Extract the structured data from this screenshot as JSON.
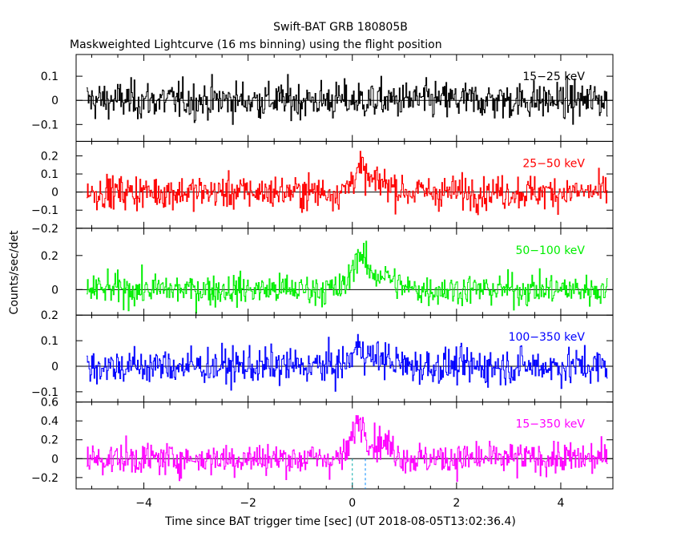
{
  "title": "Swift-BAT GRB 180805B",
  "subtitle": "Maskweighted Lightcurve (16 ms binning) using the flight position",
  "ylabel": "Counts/sec/det",
  "xlabel": "Time since BAT trigger time [sec] (UT 2018-08-05T13:02:36.4)",
  "chart_data": {
    "type": "line",
    "xlim": [
      -5.3,
      5.0
    ],
    "x_ticks": [
      -4,
      -2,
      0,
      2,
      4
    ],
    "x_tick_labels": [
      "−4",
      "−2",
      "0",
      "2",
      "4"
    ],
    "dashed_markers_x": [
      0,
      0.25
    ],
    "panels": [
      {
        "name": "15-25 keV",
        "label": "15−25 keV",
        "color": "#000000",
        "ylim": [
          -0.17,
          0.19
        ],
        "yticks": [
          -0.1,
          0,
          0.1
        ],
        "ytick_labels": [
          "−0.1",
          "0",
          "0.1"
        ],
        "noise": 0.055,
        "burst_amp": 0.0
      },
      {
        "name": "25-50 keV",
        "label": "25−50 keV",
        "color": "#ff0000",
        "ylim": [
          -0.2,
          0.28
        ],
        "yticks": [
          -0.2,
          -0.1,
          0,
          0.1,
          0.2
        ],
        "ytick_labels": [
          "−0.2",
          "−0.1",
          "0",
          "0.1",
          "0.2"
        ],
        "noise": 0.065,
        "burst_amp": 0.12
      },
      {
        "name": "50-100 keV",
        "label": "50−100 keV",
        "color": "#00ee00",
        "ylim": [
          -0.15,
          0.36
        ],
        "yticks": [
          0,
          0.2
        ],
        "ytick_labels": [
          "0",
          "0.2"
        ],
        "noise": 0.065,
        "burst_amp": 0.2
      },
      {
        "name": "100-350 keV",
        "label": "100−350 keV",
        "color": "#0000ff",
        "ylim": [
          -0.14,
          0.2
        ],
        "yticks": [
          -0.1,
          0,
          0.1,
          0.2
        ],
        "ytick_labels": [
          "−0.1",
          "0",
          "0.1",
          "0.2"
        ],
        "noise": 0.05,
        "burst_amp": 0.07
      },
      {
        "name": "15-350 keV",
        "label": "15−350 keV",
        "color": "#ff00ff",
        "ylim": [
          -0.32,
          0.6
        ],
        "yticks": [
          -0.2,
          0,
          0.2,
          0.4,
          0.6
        ],
        "ytick_labels": [
          "−0.2",
          "0",
          "0.2",
          "0.4",
          "0.6"
        ],
        "noise": 0.12,
        "burst_amp": 0.38
      }
    ]
  }
}
